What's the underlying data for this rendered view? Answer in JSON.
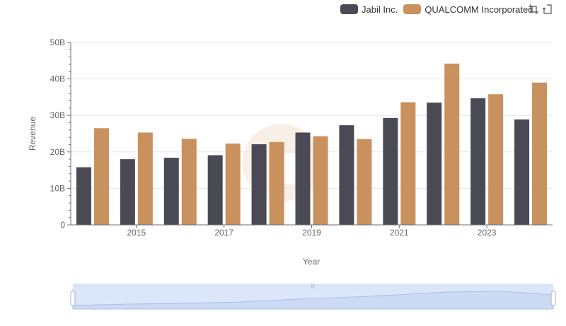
{
  "legend": {
    "items": [
      {
        "label": "Jabil Inc.",
        "color": "#4a4a55"
      },
      {
        "label": "QUALCOMM Incorporated",
        "color": "#c8915e"
      }
    ]
  },
  "toolbar": {
    "zoom_icon": "data-zoom-icon",
    "restore_icon": "restore-icon"
  },
  "chart_data": {
    "type": "bar",
    "categories": [
      "2014",
      "2015",
      "2016",
      "2017",
      "2018",
      "2019",
      "2020",
      "2021",
      "2022",
      "2023",
      "2024"
    ],
    "x_tick_labels": [
      "2015",
      "2017",
      "2019",
      "2021",
      "2023"
    ],
    "series": [
      {
        "name": "Jabil Inc.",
        "color": "#4a4a55",
        "values": [
          15.8,
          18.0,
          18.4,
          19.1,
          22.1,
          25.3,
          27.3,
          29.3,
          33.5,
          34.7,
          28.9
        ]
      },
      {
        "name": "QUALCOMM Incorporated",
        "color": "#c8915e",
        "values": [
          26.5,
          25.3,
          23.6,
          22.3,
          22.7,
          24.3,
          23.5,
          33.6,
          44.2,
          35.8,
          39.0
        ]
      }
    ],
    "xlabel": "Year",
    "ylabel": "Revenue",
    "y_ticks": [
      0,
      10,
      20,
      30,
      40,
      50
    ],
    "y_tick_labels": [
      "0",
      "10B",
      "20B",
      "30B",
      "40B",
      "50B"
    ],
    "ylim": [
      0,
      50
    ],
    "unit": "B",
    "grid": true,
    "legend_position": "top-right",
    "data_zoom": {
      "start_percent": 0,
      "end_percent": 100
    }
  }
}
